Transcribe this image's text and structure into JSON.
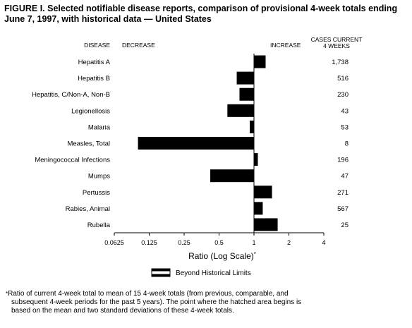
{
  "title": "FIGURE I. Selected notifiable disease reports, comparison of provisional 4-week totals ending June 7, 1997, with historical data — United States",
  "headers": {
    "disease": "DISEASE",
    "decrease": "DECREASE",
    "increase": "INCREASE",
    "cases_line1": "CASES CURRENT",
    "cases_line2": "4 WEEKS"
  },
  "legend_label": "Beyond Historical Limits",
  "footnote": {
    "symbol": "*",
    "line1": "Ratio of current 4-week total to mean of 15 4-week totals (from previous, comparable, and",
    "line2": "subsequent 4-week periods for the past 5 years). The point where the hatched area begins is",
    "line3": "based on the mean and two standard deviations of these 4-week totals."
  },
  "chart_data": {
    "type": "bar",
    "orientation": "horizontal",
    "scale": "log2",
    "xlabel": "Ratio (Log Scale)",
    "xlabel_symbol": "*",
    "xlim": [
      0.0625,
      4
    ],
    "baseline": 1,
    "ticks": [
      0.0625,
      0.125,
      0.25,
      0.5,
      1,
      2,
      4
    ],
    "tick_labels": [
      "0.0625",
      "0.125",
      "0.25",
      "0.5",
      "1",
      "2",
      "4"
    ],
    "categories": [
      "Hepatitis A",
      "Hepatitis B",
      "Hepatitis, C/Non-A, Non-B",
      "Legionellosis",
      "Malaria",
      "Measles, Total",
      "Meningococcal Infections",
      "Mumps",
      "Pertussis",
      "Rabies, Animal",
      "Rubella"
    ],
    "values": [
      1.26,
      0.71,
      0.75,
      0.59,
      0.92,
      0.1,
      1.08,
      0.42,
      1.43,
      1.19,
      1.6
    ],
    "cases": [
      "1,738",
      "516",
      "230",
      "43",
      "53",
      "8",
      "196",
      "47",
      "271",
      "567",
      "25"
    ],
    "bar_color": "#000000"
  }
}
